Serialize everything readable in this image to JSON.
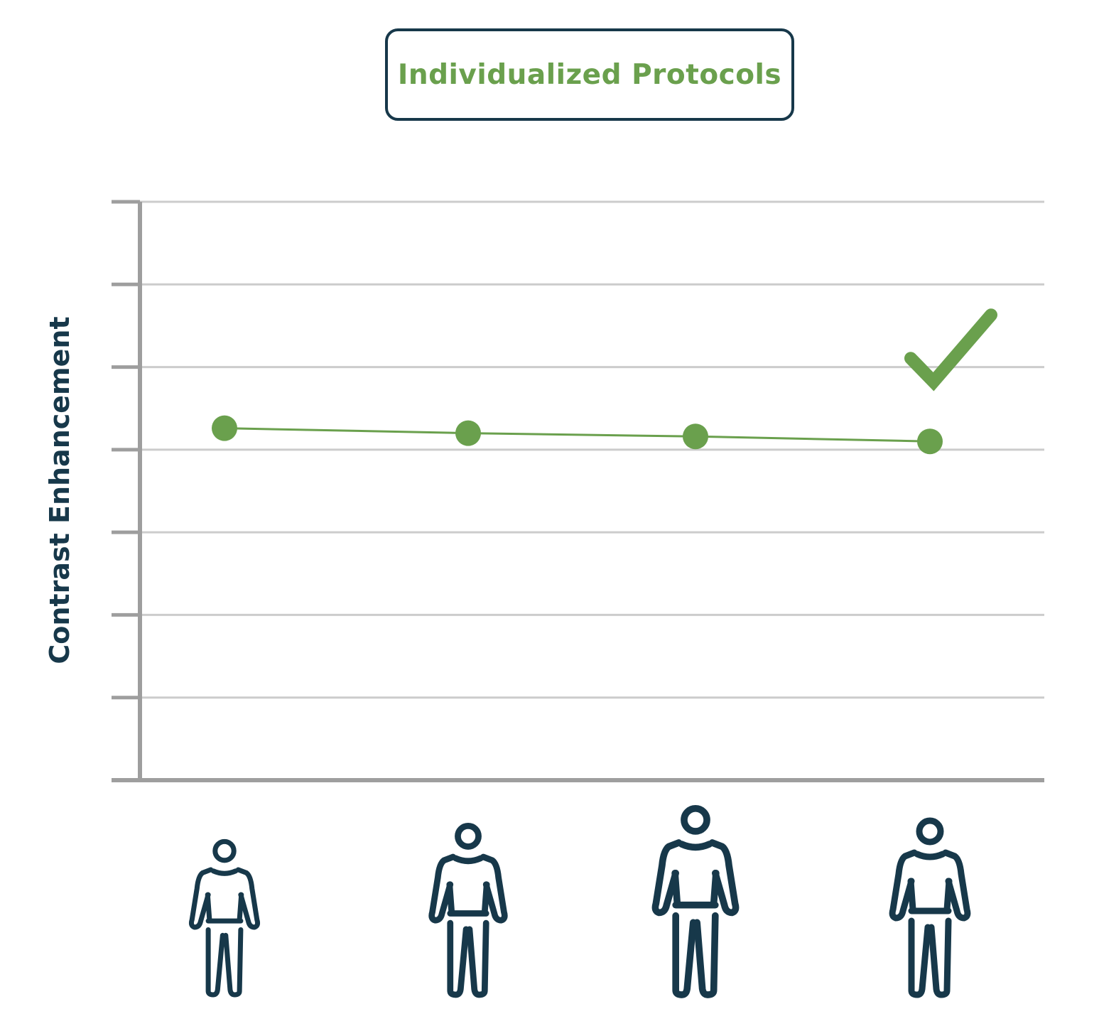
{
  "chart_data": {
    "type": "line",
    "title": "Individualized Protocols",
    "xlabel": "",
    "ylabel": "Contrast Enhancement",
    "categories": [
      "",
      "",
      "",
      ""
    ],
    "category_icons": [
      "person-icon",
      "person-icon",
      "person-icon",
      "person-icon"
    ],
    "y_values": [
      4.26,
      4.2,
      4.16,
      4.1
    ],
    "ylim": [
      0,
      7
    ],
    "grid": true,
    "legend": "none",
    "annotation_icon": "checkmark-icon",
    "colors": {
      "series": "#6aa04d",
      "axis": "#9e9e9e",
      "grid": "#cccccc",
      "text": "#17384a"
    }
  }
}
